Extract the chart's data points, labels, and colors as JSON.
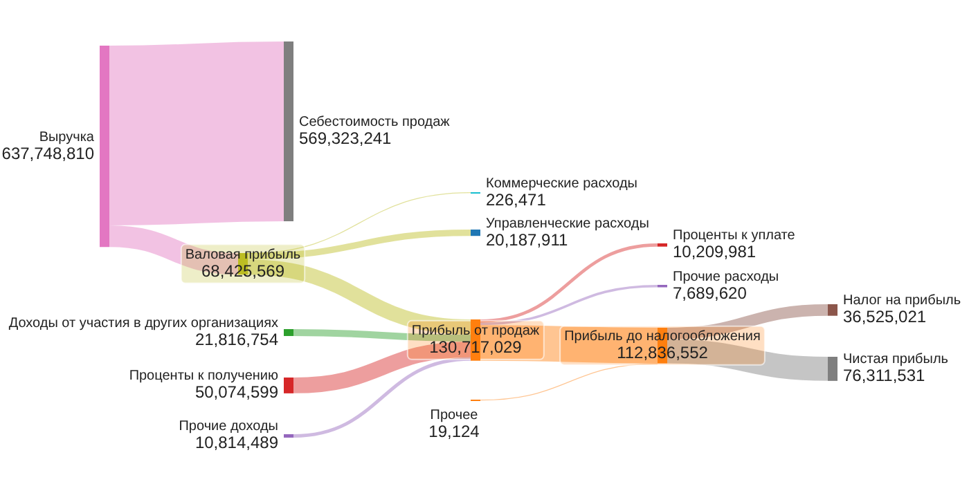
{
  "chart_data": {
    "type": "other",
    "categories": [
      "Выручка",
      "Себестоимость продаж",
      "Валовая прибыль",
      "Коммерческие расходы",
      "Управленческие расходы",
      "Доходы от участия в других организациях",
      "Проценты к получению",
      "Прочие доходы",
      "Прибыль от продаж",
      "Прочее",
      "Проценты к уплате",
      "Прочие расходы",
      "Прибыль до налогообложения",
      "Налог на прибыль",
      "Чистая прибыль"
    ],
    "values": [
      637748810,
      569323241,
      68425569,
      226471,
      20187911,
      21816754,
      50074599,
      10814489,
      130717029,
      19124,
      10209981,
      7689620,
      112836552,
      36525021,
      76311531
    ],
    "value_labels": [
      "637,748,810",
      "569,323,241",
      "68,425,569",
      "226,471",
      "20,187,911",
      "21,816,754",
      "50,074,599",
      "10,814,489",
      "130,717,029",
      "19,124",
      "10,209,981",
      "7,689,620",
      "112,836,552",
      "36,525,021",
      "76,311,531"
    ],
    "colors": [
      "#e377c2",
      "#7f7f7f",
      "#bcbd22",
      "#17becf",
      "#1f77b4",
      "#2ca02c",
      "#d62728",
      "#9467bd",
      "#ff7f0e",
      "#ff7f0e",
      "#d62728",
      "#9467bd",
      "#ff7f0e",
      "#8c564b",
      "#7f7f7f"
    ]
  }
}
